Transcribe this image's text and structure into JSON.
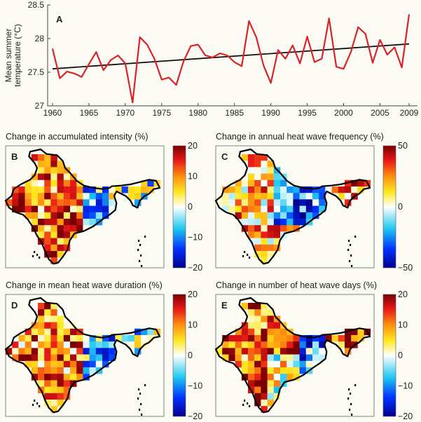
{
  "chart_data": [
    {
      "type": "line",
      "panel_label": "A",
      "ylabel_lines": [
        "Mean summer",
        "temperature (°C)"
      ],
      "ylim": [
        27,
        28.5
      ],
      "yticks": [
        "27",
        "27.5",
        "28",
        "28.5"
      ],
      "xticks": [
        "1960",
        "1965",
        "1970",
        "1975",
        "1980",
        "1985",
        "1990",
        "1995",
        "2000",
        "2005",
        "2009"
      ],
      "x_start": 1960,
      "values": [
        27.85,
        27.41,
        27.51,
        27.48,
        27.43,
        27.62,
        27.8,
        27.53,
        27.68,
        27.75,
        27.63,
        27.05,
        28.02,
        27.91,
        27.7,
        27.39,
        27.42,
        27.31,
        27.66,
        27.89,
        27.91,
        27.75,
        27.72,
        27.78,
        27.75,
        27.65,
        27.59,
        28.26,
        28.02,
        27.6,
        27.34,
        27.83,
        27.7,
        27.9,
        27.63,
        28.03,
        27.65,
        27.7,
        28.3,
        27.58,
        27.55,
        27.8,
        28.17,
        28.07,
        27.64,
        27.98,
        27.76,
        27.87,
        27.57,
        28.36
      ],
      "trend": {
        "x": [
          1960,
          2009
        ],
        "y": [
          27.55,
          27.92
        ]
      },
      "colors": {
        "series": "#d8232a",
        "trend": "#111111"
      }
    },
    {
      "type": "heatmap",
      "panel_label": "B",
      "title": "Change in accumulated intensity (%)",
      "colorbar_ticks": [
        "20",
        "10",
        "0",
        "−10",
        "−20"
      ],
      "range": [
        -20,
        20
      ]
    },
    {
      "type": "heatmap",
      "panel_label": "C",
      "title": "Change in annual heat wave frequency (%)",
      "colorbar_ticks": [
        "50",
        "",
        "0",
        "",
        "−50"
      ],
      "range": [
        -50,
        50
      ]
    },
    {
      "type": "heatmap",
      "panel_label": "D",
      "title": "Change in mean heat wave duration (%)",
      "colorbar_ticks": [
        "20",
        "10",
        "0",
        "−10",
        "−20"
      ],
      "range": [
        -20,
        20
      ]
    },
    {
      "type": "heatmap",
      "panel_label": "E",
      "title": "Change in number of heat wave days (%)",
      "colorbar_ticks": [
        "20",
        "10",
        "0",
        "−10",
        "−20"
      ],
      "range": [
        -20,
        20
      ]
    }
  ]
}
